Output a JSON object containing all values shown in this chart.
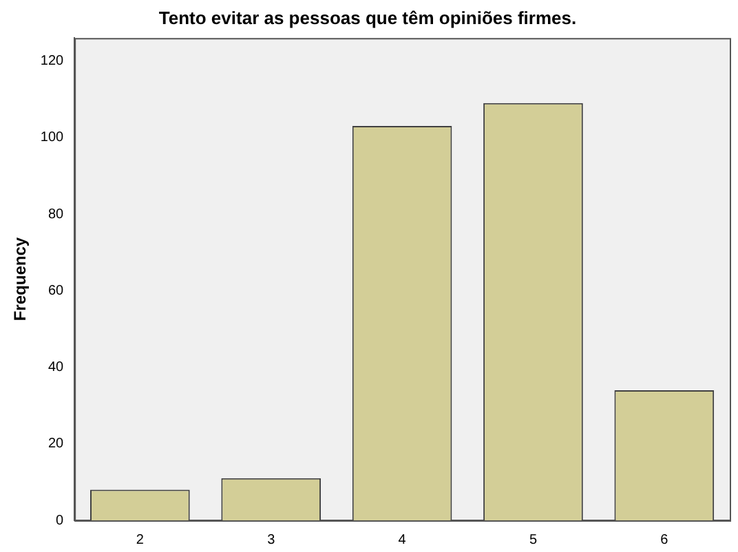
{
  "chart_data": {
    "type": "bar",
    "title": "Tento evitar as pessoas que têm opiniões firmes.",
    "ylabel": "Frequency",
    "categories": [
      "2",
      "3",
      "4",
      "5",
      "6"
    ],
    "values": [
      8,
      11,
      103,
      109,
      34
    ],
    "color": "#d3ce97",
    "ylim": [
      0,
      126
    ],
    "yticks": [
      0,
      20,
      40,
      60,
      80,
      100,
      120
    ],
    "grid": false,
    "legend": false
  }
}
